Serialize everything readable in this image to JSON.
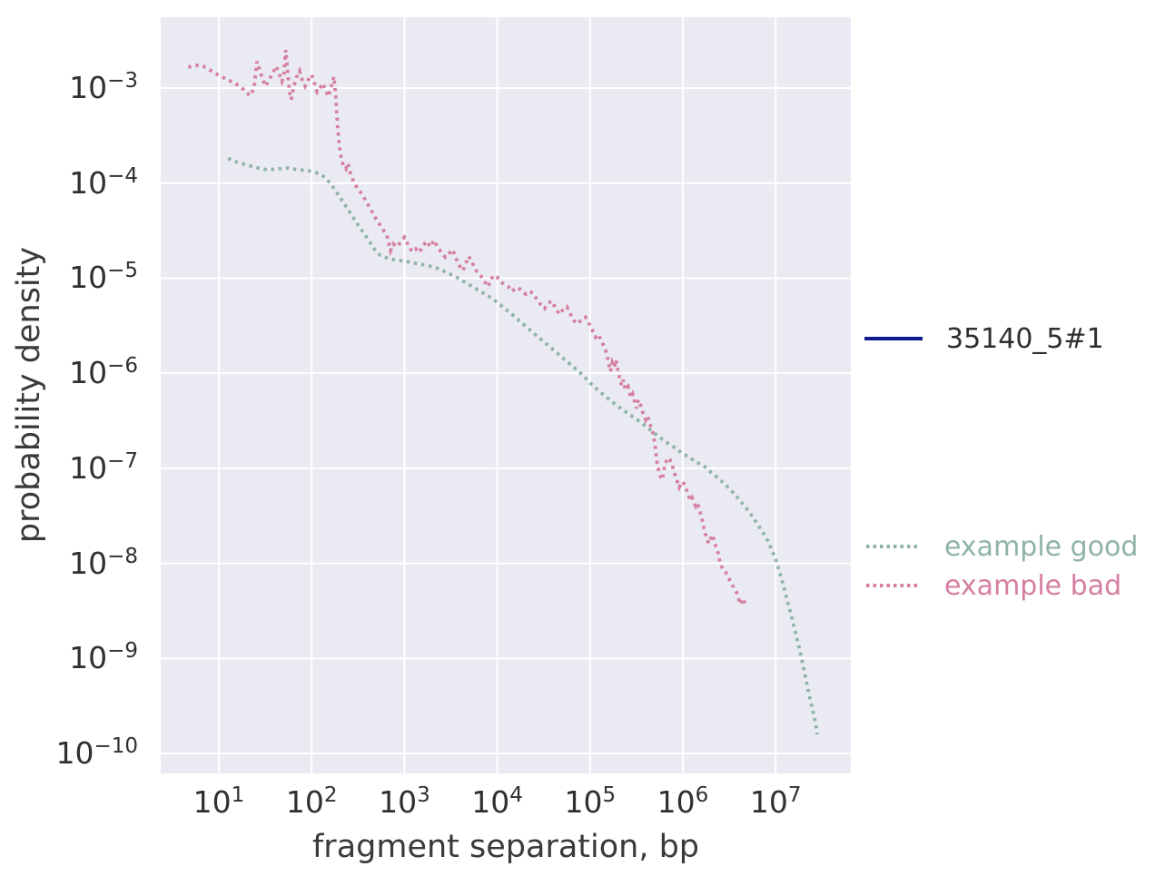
{
  "figure": {
    "background": "#ffffff",
    "plot_background": "#eaeaf2",
    "grid_color": "#ffffff",
    "tick_color": "#303030",
    "label_color": "#3a3a3a"
  },
  "legend": {
    "items": [
      {
        "label": "35140_5#1",
        "color": "#121c8e",
        "text_color": "#2e2e2e",
        "style": "solid"
      },
      {
        "label": "example good",
        "color": "#8fb3a9",
        "text_color": "#8fb3a9",
        "style": "dotted"
      },
      {
        "label": "example bad",
        "color": "#d57fa2",
        "text_color": "#d57fa2",
        "style": "dotted"
      }
    ]
  },
  "chart_data": {
    "type": "line",
    "title": "",
    "xlabel": "fragment separation, bp",
    "ylabel": "probability density",
    "x_scale": "log",
    "y_scale": "log",
    "grid": true,
    "legend_position": "right-outside",
    "x_tick_exponents": [
      1,
      2,
      3,
      4,
      5,
      6,
      7
    ],
    "y_tick_exponents": [
      -3,
      -4,
      -5,
      -6,
      -7,
      -8,
      -9,
      -10
    ],
    "tick_base": "10",
    "xlim_log10": [
      0.374,
      7.81
    ],
    "ylim_log10": [
      -10.21,
      -2.255
    ],
    "series": [
      {
        "name": "35140_5#1",
        "color": "#121c8e",
        "linestyle": "solid",
        "points_log10": []
      },
      {
        "name": "example good",
        "color": "#8fb3a9",
        "linestyle": "dotted",
        "points_log10": [
          [
            1.1,
            -3.74
          ],
          [
            1.2,
            -3.78
          ],
          [
            1.31,
            -3.81
          ],
          [
            1.42,
            -3.84
          ],
          [
            1.53,
            -3.86
          ],
          [
            1.64,
            -3.85
          ],
          [
            1.75,
            -3.84
          ],
          [
            1.86,
            -3.86
          ],
          [
            1.97,
            -3.87
          ],
          [
            2.05,
            -3.89
          ],
          [
            2.13,
            -3.93
          ],
          [
            2.21,
            -4.01
          ],
          [
            2.3,
            -4.14
          ],
          [
            2.4,
            -4.29
          ],
          [
            2.5,
            -4.44
          ],
          [
            2.6,
            -4.58
          ],
          [
            2.68,
            -4.7
          ],
          [
            2.74,
            -4.76
          ],
          [
            2.82,
            -4.79
          ],
          [
            2.9,
            -4.81
          ],
          [
            3.0,
            -4.82
          ],
          [
            3.1,
            -4.84
          ],
          [
            3.22,
            -4.86
          ],
          [
            3.34,
            -4.89
          ],
          [
            3.46,
            -4.94
          ],
          [
            3.58,
            -5.0
          ],
          [
            3.7,
            -5.07
          ],
          [
            3.82,
            -5.14
          ],
          [
            3.94,
            -5.21
          ],
          [
            4.06,
            -5.3
          ],
          [
            4.18,
            -5.4
          ],
          [
            4.3,
            -5.5
          ],
          [
            4.42,
            -5.6
          ],
          [
            4.54,
            -5.7
          ],
          [
            4.66,
            -5.8
          ],
          [
            4.78,
            -5.9
          ],
          [
            4.9,
            -6.0
          ],
          [
            5.03,
            -6.13
          ],
          [
            5.16,
            -6.24
          ],
          [
            5.29,
            -6.34
          ],
          [
            5.42,
            -6.43
          ],
          [
            5.55,
            -6.52
          ],
          [
            5.68,
            -6.62
          ],
          [
            5.81,
            -6.72
          ],
          [
            5.94,
            -6.8
          ],
          [
            6.0,
            -6.85
          ],
          [
            6.07,
            -6.88
          ],
          [
            6.13,
            -6.93
          ],
          [
            6.2,
            -6.96
          ],
          [
            6.26,
            -7.0
          ],
          [
            6.3,
            -7.04
          ],
          [
            6.4,
            -7.12
          ],
          [
            6.5,
            -7.21
          ],
          [
            6.6,
            -7.32
          ],
          [
            6.7,
            -7.44
          ],
          [
            6.8,
            -7.58
          ],
          [
            6.9,
            -7.73
          ],
          [
            7.0,
            -7.95
          ],
          [
            7.08,
            -8.22
          ],
          [
            7.15,
            -8.48
          ],
          [
            7.22,
            -8.75
          ],
          [
            7.29,
            -9.05
          ],
          [
            7.36,
            -9.38
          ],
          [
            7.42,
            -9.63
          ],
          [
            7.45,
            -9.8
          ]
        ]
      },
      {
        "name": "example bad",
        "color": "#d57fa2",
        "linestyle": "dotted",
        "points_log10": [
          [
            0.67,
            -2.78
          ],
          [
            0.72,
            -2.77
          ],
          [
            0.77,
            -2.76
          ],
          [
            0.83,
            -2.77
          ],
          [
            0.89,
            -2.8
          ],
          [
            0.95,
            -2.84
          ],
          [
            1.01,
            -2.87
          ],
          [
            1.07,
            -2.9
          ],
          [
            1.13,
            -2.93
          ],
          [
            1.19,
            -2.96
          ],
          [
            1.25,
            -3.0
          ],
          [
            1.3,
            -3.05
          ],
          [
            1.34,
            -3.08
          ],
          [
            1.38,
            -3.0
          ],
          [
            1.41,
            -2.72
          ],
          [
            1.44,
            -2.81
          ],
          [
            1.47,
            -2.9
          ],
          [
            1.5,
            -2.98
          ],
          [
            1.54,
            -2.92
          ],
          [
            1.58,
            -2.84
          ],
          [
            1.62,
            -2.77
          ],
          [
            1.65,
            -2.85
          ],
          [
            1.68,
            -2.93
          ],
          [
            1.7,
            -2.88
          ],
          [
            1.72,
            -2.6
          ],
          [
            1.74,
            -2.8
          ],
          [
            1.76,
            -3.03
          ],
          [
            1.78,
            -3.12
          ],
          [
            1.81,
            -2.97
          ],
          [
            1.84,
            -2.88
          ],
          [
            1.87,
            -2.82
          ],
          [
            1.9,
            -2.92
          ],
          [
            1.93,
            -2.98
          ],
          [
            1.96,
            -2.92
          ],
          [
            2.0,
            -2.86
          ],
          [
            2.03,
            -2.95
          ],
          [
            2.06,
            -3.04
          ],
          [
            2.09,
            -3.0
          ],
          [
            2.12,
            -2.95
          ],
          [
            2.15,
            -3.02
          ],
          [
            2.18,
            -3.09
          ],
          [
            2.21,
            -2.99
          ],
          [
            2.24,
            -2.88
          ],
          [
            2.26,
            -3.1
          ],
          [
            2.28,
            -3.4
          ],
          [
            2.3,
            -3.62
          ],
          [
            2.32,
            -3.74
          ],
          [
            2.34,
            -3.81
          ],
          [
            2.37,
            -3.85
          ],
          [
            2.39,
            -3.79
          ],
          [
            2.42,
            -3.9
          ],
          [
            2.45,
            -3.98
          ],
          [
            2.49,
            -4.05
          ],
          [
            2.53,
            -4.1
          ],
          [
            2.57,
            -4.16
          ],
          [
            2.61,
            -4.23
          ],
          [
            2.65,
            -4.3
          ],
          [
            2.69,
            -4.37
          ],
          [
            2.73,
            -4.43
          ],
          [
            2.77,
            -4.49
          ],
          [
            2.81,
            -4.55
          ],
          [
            2.85,
            -4.71
          ],
          [
            2.88,
            -4.64
          ],
          [
            2.92,
            -4.67
          ],
          [
            2.96,
            -4.62
          ],
          [
            3.0,
            -4.57
          ],
          [
            3.04,
            -4.65
          ],
          [
            3.08,
            -4.72
          ],
          [
            3.12,
            -4.69
          ],
          [
            3.16,
            -4.73
          ],
          [
            3.2,
            -4.66
          ],
          [
            3.24,
            -4.61
          ],
          [
            3.28,
            -4.67
          ],
          [
            3.32,
            -4.6
          ],
          [
            3.36,
            -4.68
          ],
          [
            3.4,
            -4.73
          ],
          [
            3.44,
            -4.78
          ],
          [
            3.48,
            -4.74
          ],
          [
            3.52,
            -4.7
          ],
          [
            3.56,
            -4.8
          ],
          [
            3.6,
            -4.88
          ],
          [
            3.63,
            -4.92
          ],
          [
            3.66,
            -4.85
          ],
          [
            3.69,
            -4.77
          ],
          [
            3.72,
            -4.81
          ],
          [
            3.75,
            -4.88
          ],
          [
            3.78,
            -4.93
          ],
          [
            3.82,
            -4.97
          ],
          [
            3.86,
            -5.03
          ],
          [
            3.9,
            -5.09
          ],
          [
            3.93,
            -5.02
          ],
          [
            3.96,
            -4.97
          ],
          [
            4.0,
            -4.99
          ],
          [
            4.04,
            -5.04
          ],
          [
            4.08,
            -5.07
          ],
          [
            4.12,
            -5.09
          ],
          [
            4.16,
            -5.14
          ],
          [
            4.19,
            -5.11
          ],
          [
            4.23,
            -5.1
          ],
          [
            4.27,
            -5.14
          ],
          [
            4.31,
            -5.17
          ],
          [
            4.35,
            -5.14
          ],
          [
            4.39,
            -5.16
          ],
          [
            4.43,
            -5.23
          ],
          [
            4.47,
            -5.28
          ],
          [
            4.51,
            -5.32
          ],
          [
            4.55,
            -5.26
          ],
          [
            4.59,
            -5.24
          ],
          [
            4.63,
            -5.32
          ],
          [
            4.67,
            -5.38
          ],
          [
            4.71,
            -5.33
          ],
          [
            4.75,
            -5.3
          ],
          [
            4.79,
            -5.38
          ],
          [
            4.83,
            -5.45
          ],
          [
            4.87,
            -5.48
          ],
          [
            4.91,
            -5.43
          ],
          [
            4.95,
            -5.41
          ],
          [
            4.99,
            -5.48
          ],
          [
            5.03,
            -5.56
          ],
          [
            5.06,
            -5.62
          ],
          [
            5.09,
            -5.59
          ],
          [
            5.12,
            -5.66
          ],
          [
            5.15,
            -5.71
          ],
          [
            5.18,
            -5.79
          ],
          [
            5.2,
            -5.89
          ],
          [
            5.22,
            -5.98
          ],
          [
            5.24,
            -5.89
          ],
          [
            5.26,
            -5.94
          ],
          [
            5.28,
            -5.86
          ],
          [
            5.3,
            -5.97
          ],
          [
            5.32,
            -6.06
          ],
          [
            5.34,
            -6.13
          ],
          [
            5.36,
            -6.07
          ],
          [
            5.38,
            -6.17
          ],
          [
            5.41,
            -6.14
          ],
          [
            5.44,
            -6.26
          ],
          [
            5.46,
            -6.22
          ],
          [
            5.48,
            -6.3
          ],
          [
            5.5,
            -6.37
          ],
          [
            5.52,
            -6.28
          ],
          [
            5.55,
            -6.35
          ],
          [
            5.57,
            -6.42
          ],
          [
            5.6,
            -6.49
          ],
          [
            5.62,
            -6.45
          ],
          [
            5.64,
            -6.51
          ],
          [
            5.66,
            -6.58
          ],
          [
            5.68,
            -6.64
          ],
          [
            5.7,
            -6.75
          ],
          [
            5.72,
            -6.93
          ],
          [
            5.74,
            -7.02
          ],
          [
            5.76,
            -7.09
          ],
          [
            5.78,
            -7.12
          ],
          [
            5.8,
            -7.0
          ],
          [
            5.82,
            -6.93
          ],
          [
            5.84,
            -6.89
          ],
          [
            5.86,
            -6.91
          ],
          [
            5.88,
            -6.95
          ],
          [
            5.9,
            -7.02
          ],
          [
            5.92,
            -7.08
          ],
          [
            5.94,
            -7.14
          ],
          [
            5.96,
            -7.2
          ],
          [
            5.98,
            -7.16
          ],
          [
            6.0,
            -7.14
          ],
          [
            6.02,
            -7.18
          ],
          [
            6.04,
            -7.23
          ],
          [
            6.06,
            -7.28
          ],
          [
            6.08,
            -7.34
          ],
          [
            6.1,
            -7.31
          ],
          [
            6.12,
            -7.36
          ],
          [
            6.14,
            -7.4
          ],
          [
            6.16,
            -7.37
          ],
          [
            6.18,
            -7.44
          ],
          [
            6.2,
            -7.51
          ],
          [
            6.22,
            -7.6
          ],
          [
            6.24,
            -7.68
          ],
          [
            6.26,
            -7.75
          ],
          [
            6.28,
            -7.79
          ],
          [
            6.3,
            -7.74
          ],
          [
            6.32,
            -7.7
          ],
          [
            6.34,
            -7.77
          ],
          [
            6.36,
            -7.84
          ],
          [
            6.38,
            -7.89
          ],
          [
            6.4,
            -7.99
          ],
          [
            6.43,
            -8.06
          ],
          [
            6.46,
            -8.09
          ],
          [
            6.49,
            -8.15
          ],
          [
            6.52,
            -8.2
          ],
          [
            6.55,
            -8.26
          ],
          [
            6.58,
            -8.31
          ],
          [
            6.6,
            -8.37
          ],
          [
            6.62,
            -8.43
          ],
          [
            6.64,
            -8.37
          ],
          [
            6.66,
            -8.4
          ],
          [
            6.67,
            -8.42
          ]
        ]
      }
    ]
  }
}
